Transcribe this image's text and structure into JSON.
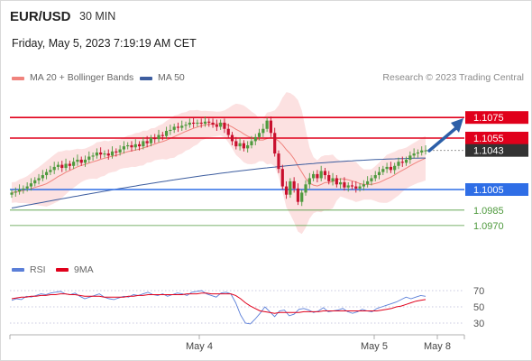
{
  "header": {
    "pair": "EUR/USD",
    "timeframe": "30 MIN",
    "datetime": "Friday, May 5, 2023 7:19:19 AM CET",
    "credit": "Research © 2023 Trading Central"
  },
  "legend_main": [
    {
      "label": "MA 20 + Bollinger Bands",
      "color": "#f0837d"
    },
    {
      "label": "MA 50",
      "color": "#3d5d9f"
    }
  ],
  "legend_rsi": [
    {
      "label": "RSI",
      "color": "#5b7fd8"
    },
    {
      "label": "9MA",
      "color": "#e0001b"
    }
  ],
  "colors": {
    "resistance": "#e0001b",
    "support": "#2f6ee6",
    "target": "#4f9a3e",
    "last_price": "#333333",
    "band_fill": "#fcdcdc",
    "ma20": "#f0837d",
    "ma50": "#3d5d9f",
    "candle_up": "#4f9a3e",
    "candle_down": "#c8102e",
    "arrow": "#2c5fa8"
  },
  "chart_data": [
    {
      "type": "candlestick",
      "title": "EUR/USD 30 MIN",
      "y_range": [
        1.095,
        1.109
      ],
      "x_ticks": [
        "May 4",
        "May 5",
        "May 8"
      ],
      "levels": [
        {
          "label": "1.1075",
          "value": 1.1075,
          "kind": "resistance"
        },
        {
          "label": "1.1055",
          "value": 1.1055,
          "kind": "resistance"
        },
        {
          "label": "1.1043",
          "value": 1.1043,
          "kind": "last"
        },
        {
          "label": "1.1005",
          "value": 1.1005,
          "kind": "support"
        },
        {
          "label": "1.0985",
          "value": 1.0985,
          "kind": "target"
        },
        {
          "label": "1.0970",
          "value": 1.097,
          "kind": "target"
        }
      ],
      "candles": [
        1.1002,
        1.1003,
        1.1005,
        1.1006,
        1.1008,
        1.1011,
        1.1014,
        1.1016,
        1.1019,
        1.1022,
        1.1024,
        1.1027,
        1.1029,
        1.1026,
        1.103,
        1.1028,
        1.1032,
        1.1034,
        1.1031,
        1.1034,
        1.1037,
        1.1038,
        1.1041,
        1.1039,
        1.104,
        1.1038,
        1.1042,
        1.1041,
        1.1044,
        1.1047,
        1.1048,
        1.1046,
        1.1049,
        1.1047,
        1.1052,
        1.105,
        1.1055,
        1.1054,
        1.1058,
        1.1057,
        1.1062,
        1.1063,
        1.1066,
        1.1065,
        1.1067,
        1.1068,
        1.107,
        1.1069,
        1.107,
        1.1069,
        1.1071,
        1.107,
        1.1068,
        1.1066,
        1.107,
        1.1064,
        1.1058,
        1.1052,
        1.1047,
        1.105,
        1.1045,
        1.1048,
        1.1052,
        1.1056,
        1.106,
        1.1064,
        1.1072,
        1.106,
        1.104,
        1.1025,
        1.1008,
        1.1,
        1.1013,
        1.1006,
        1.0993,
        1.1002,
        1.101,
        1.1016,
        1.102,
        1.1016,
        1.1023,
        1.1019,
        1.1013,
        1.1016,
        1.101,
        1.1012,
        1.1007,
        1.1009,
        1.1008,
        1.1006,
        1.1008,
        1.101,
        1.1013,
        1.1016,
        1.1019,
        1.1022,
        1.1025,
        1.1027,
        1.1024,
        1.1028,
        1.1032,
        1.1031,
        1.1034,
        1.1038,
        1.104,
        1.1041,
        1.1043,
        1.1043
      ],
      "ma50_start": 1.0987,
      "ma50_end": 1.1038
    },
    {
      "type": "line",
      "title": "RSI",
      "y_ticks": [
        70,
        50,
        30
      ],
      "series": [
        {
          "name": "RSI",
          "values": [
            58,
            60,
            59,
            63,
            62,
            64,
            66,
            65,
            67,
            68,
            69,
            66,
            65,
            67,
            63,
            60,
            62,
            64,
            66,
            62,
            60,
            59,
            61,
            63,
            62,
            65,
            64,
            66,
            68,
            65,
            64,
            66,
            63,
            65,
            67,
            66,
            64,
            68,
            69,
            70,
            66,
            64,
            62,
            67,
            68,
            66,
            55,
            40,
            30,
            29,
            35,
            42,
            50,
            44,
            38,
            45,
            46,
            39,
            41,
            47,
            48,
            46,
            43,
            45,
            49,
            44,
            45,
            46,
            48,
            44,
            42,
            44,
            47,
            45,
            44,
            48,
            50,
            52,
            54,
            56,
            59,
            62,
            60,
            62,
            64,
            63
          ]
        },
        {
          "name": "9MA",
          "values": [
            60,
            61,
            62,
            62,
            63,
            63,
            64,
            64,
            65,
            65,
            66,
            66,
            65,
            65,
            64,
            63,
            63,
            63,
            63,
            62,
            62,
            62,
            62,
            62,
            63,
            63,
            64,
            64,
            65,
            65,
            65,
            65,
            65,
            65,
            65,
            65,
            66,
            66,
            66,
            67,
            67,
            66,
            66,
            66,
            66,
            66,
            64,
            60,
            55,
            51,
            48,
            45,
            44,
            43,
            42,
            43,
            43,
            43,
            43,
            43,
            44,
            44,
            44,
            44,
            45,
            45,
            45,
            45,
            45,
            45,
            45,
            45,
            45,
            45,
            45,
            45,
            46,
            47,
            48,
            50,
            51,
            53,
            55,
            57,
            58,
            59
          ]
        }
      ]
    }
  ]
}
